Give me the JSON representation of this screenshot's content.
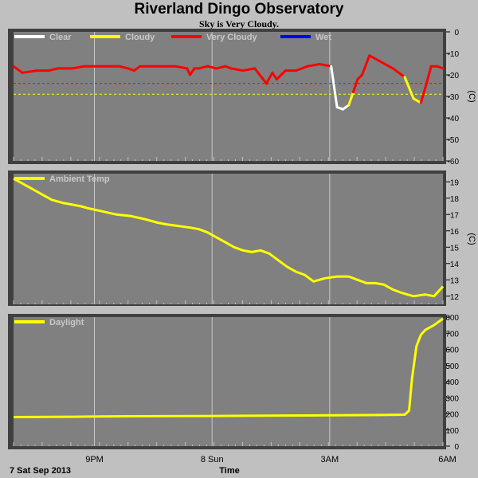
{
  "header": {
    "title": "Riverland Dingo Observatory",
    "subtitle": "Sky is Very Cloudy."
  },
  "footer": {
    "date_label": "7 Sat Sep 2013",
    "xlabel": "Time"
  },
  "colors": {
    "background": "#c0c0c0",
    "plot_bg": "#808080",
    "grid": "#c8c8c8",
    "clear": "#ffffff",
    "cloudy": "#ffff00",
    "very_cloudy": "#ff0000",
    "wet": "#0000ff",
    "threshold_line": "#ff0000"
  },
  "chart_data": [
    {
      "type": "line",
      "name": "sky-temperature",
      "legend": [
        {
          "name": "Clear",
          "color": "#ffffff"
        },
        {
          "name": "Cloudy",
          "color": "#ffff00"
        },
        {
          "name": "Very Cloudy",
          "color": "#ff0000"
        },
        {
          "name": "Wet",
          "color": "#0000ff"
        }
      ],
      "ylabel": "(C)",
      "ylim": [
        -60,
        0
      ],
      "yticks": [
        0,
        -10,
        -20,
        -30,
        -40,
        -50,
        -60
      ],
      "thresholds": [
        {
          "value": -24,
          "color": "#ff0000"
        },
        {
          "value": -29,
          "color": "#ffff00"
        }
      ],
      "x_hours": [
        0,
        0.3,
        0.8,
        1.2,
        1.5,
        2.0,
        2.4,
        2.8,
        3.2,
        3.6,
        3.9,
        4.1,
        4.3,
        4.5,
        4.9,
        5.2,
        5.5,
        5.9,
        6.0,
        6.15,
        6.3,
        6.6,
        6.9,
        7.2,
        7.4,
        7.8,
        8.2,
        8.6,
        8.8,
        8.95,
        9.1,
        9.25,
        9.6,
        10.0,
        10.4,
        10.8,
        11.0,
        11.2,
        11.4,
        11.55,
        11.7,
        11.85,
        12.1,
        12.5,
        12.9,
        13.3,
        13.6,
        13.85,
        14.0,
        14.2,
        14.4,
        14.6
      ],
      "y_values": [
        -16,
        -19,
        -18,
        -18,
        -17,
        -17,
        -16,
        -16,
        -16,
        -16,
        -17,
        -18,
        -16,
        -16,
        -16,
        -16,
        -16,
        -17,
        -20,
        -17,
        -17,
        -16,
        -17,
        -16,
        -17,
        -18,
        -17,
        -24,
        -19,
        -22,
        -20,
        -18,
        -18,
        -16,
        -15,
        -16,
        -35,
        -36,
        -34,
        -28,
        -22,
        -20,
        -11,
        -14,
        -17,
        -21,
        -31,
        -33,
        -26,
        -16,
        -16,
        -17
      ],
      "condition": [
        "very_cloudy",
        "very_cloudy",
        "very_cloudy",
        "very_cloudy",
        "very_cloudy",
        "very_cloudy",
        "very_cloudy",
        "very_cloudy",
        "very_cloudy",
        "very_cloudy",
        "very_cloudy",
        "very_cloudy",
        "very_cloudy",
        "very_cloudy",
        "very_cloudy",
        "very_cloudy",
        "very_cloudy",
        "very_cloudy",
        "very_cloudy",
        "very_cloudy",
        "very_cloudy",
        "very_cloudy",
        "very_cloudy",
        "very_cloudy",
        "very_cloudy",
        "very_cloudy",
        "very_cloudy",
        "very_cloudy",
        "very_cloudy",
        "very_cloudy",
        "very_cloudy",
        "very_cloudy",
        "very_cloudy",
        "very_cloudy",
        "very_cloudy",
        "very_cloudy",
        "clear",
        "clear",
        "clear",
        "cloudy",
        "very_cloudy",
        "very_cloudy",
        "very_cloudy",
        "very_cloudy",
        "very_cloudy",
        "very_cloudy",
        "cloudy",
        "cloudy",
        "very_cloudy",
        "very_cloudy",
        "very_cloudy",
        "very_cloudy"
      ]
    },
    {
      "type": "line",
      "name": "ambient-temperature",
      "legend": [
        {
          "name": "Ambient Temp",
          "color": "#ffff00"
        }
      ],
      "ylabel": "(C)",
      "ylim": [
        11.5,
        19.5
      ],
      "yticks": [
        19,
        18,
        17,
        16,
        15,
        14,
        13,
        12
      ],
      "x_hours": [
        0,
        0.3,
        0.6,
        1.0,
        1.3,
        1.7,
        2.0,
        2.3,
        2.5,
        3.0,
        3.5,
        4.0,
        4.5,
        4.9,
        5.2,
        5.6,
        6.0,
        6.3,
        6.6,
        6.9,
        7.2,
        7.5,
        7.8,
        8.1,
        8.4,
        8.7,
        9.0,
        9.3,
        9.6,
        9.9,
        10.2,
        10.6,
        11.0,
        11.4,
        11.7,
        12.0,
        12.3,
        12.6,
        12.9,
        13.2,
        13.6,
        14.0,
        14.3,
        14.6
      ],
      "values": [
        19.2,
        18.9,
        18.6,
        18.2,
        17.9,
        17.7,
        17.6,
        17.5,
        17.4,
        17.2,
        17.0,
        16.9,
        16.7,
        16.5,
        16.4,
        16.3,
        16.2,
        16.1,
        15.9,
        15.6,
        15.3,
        15.0,
        14.8,
        14.7,
        14.8,
        14.6,
        14.2,
        13.8,
        13.5,
        13.3,
        12.9,
        13.1,
        13.2,
        13.2,
        13.0,
        12.8,
        12.8,
        12.7,
        12.4,
        12.2,
        12.0,
        12.1,
        12.0,
        12.6
      ]
    },
    {
      "type": "line",
      "name": "daylight",
      "legend": [
        {
          "name": "Daylight",
          "color": "#ffff00"
        }
      ],
      "ylim": [
        0,
        800
      ],
      "yticks": [
        800,
        700,
        600,
        500,
        400,
        300,
        200,
        100,
        0
      ],
      "x_hours": [
        0,
        2.0,
        4.0,
        6.0,
        8.0,
        10.0,
        11.5,
        12.5,
        13.3,
        13.45,
        13.55,
        13.7,
        13.85,
        14.0,
        14.3,
        14.6
      ],
      "values": [
        180,
        182,
        185,
        186,
        188,
        190,
        192,
        193,
        195,
        220,
        420,
        620,
        690,
        720,
        750,
        790
      ],
      "xticks": [
        {
          "hours": 2.75,
          "label": "9PM"
        },
        {
          "hours": 6.75,
          "label": "8 Sun"
        },
        {
          "hours": 10.75,
          "label": "3AM"
        },
        {
          "hours": 14.75,
          "label": "6AM"
        }
      ],
      "x_range_hours": [
        0,
        14.6
      ]
    }
  ]
}
